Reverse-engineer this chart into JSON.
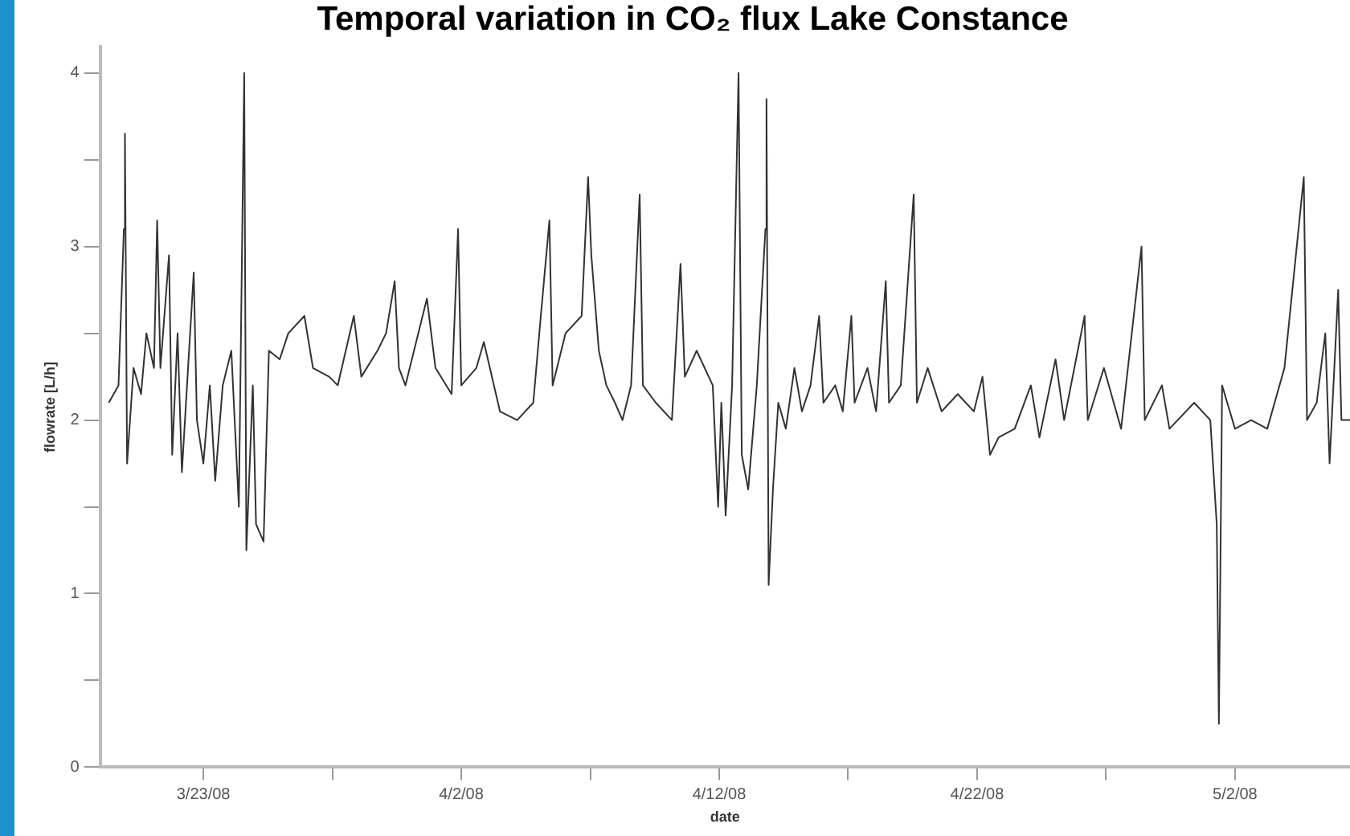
{
  "chart_data": {
    "type": "line",
    "title": "Temporal variation in CO₂ flux Lake Constance",
    "xlabel": "date",
    "ylabel": "flowrate [L/h]",
    "x": [
      "--03-19T08:00",
      "--03-19T17:00",
      "--03-19T22:00",
      "--03-19T23:00",
      "--03-20T01:00",
      "--03-20T07:00",
      "--03-20T14:00",
      "--03-20T19:00",
      "--03-21T02:00",
      "--03-21T05:00",
      "--03-21T08:00",
      "--03-21T16:00",
      "--03-21T19:00",
      "--03-22T00:00",
      "--03-22T04:00",
      "--03-22T15:00",
      "--03-22T18:00",
      "--03-23T00:00",
      "--03-23T06:00",
      "--03-23T11:00",
      "--03-23T18:00",
      "--03-24T02:00",
      "--03-24T09:00",
      "--03-24T14:00",
      "--03-24T16:00",
      "--03-24T22:00",
      "--03-25T01:00",
      "--03-25T08:00",
      "--03-25T13:00",
      "--03-25T23:00",
      "--03-26T07:00",
      "--03-26T22:00",
      "--03-27T06:00",
      "--03-27T21:00",
      "--03-28T05:00",
      "--03-28T20:00",
      "--03-29T03:00",
      "--03-29T18:00",
      "--03-30T02:00",
      "--03-30T10:00",
      "--03-30T14:00",
      "--03-30T20:00",
      "--03-31T16:00",
      "--04-01T00:00",
      "--04-01T15:00",
      "--04-01T21:00",
      "--04-02T00:00",
      "--04-02T14:00",
      "--04-02T21:00",
      "--04-03T12:00",
      "--04-04T04:00",
      "--04-04T19:00",
      "--04-05T02:00",
      "--04-05T10:00",
      "--04-05T13:00",
      "--04-06T01:00",
      "--04-06T16:00",
      "--04-06T22:00",
      "--04-07T01:00",
      "--04-07T08:00",
      "--04-07T15:00",
      "--04-07T23:00",
      "--04-08T06:00",
      "--04-08T14:00",
      "--04-08T22:00",
      "--04-09T01:00",
      "--04-09T13:00",
      "--04-10T04:00",
      "--04-10T12:00",
      "--04-10T16:00",
      "--04-11T03:00",
      "--04-11T18:00",
      "--04-11T23:00",
      "--04-12T02:00",
      "--04-12T06:00",
      "--04-12T12:00",
      "--04-12T18:00",
      "--04-12T21:00",
      "--04-13T03:00",
      "--04-13T11:00",
      "--04-13T19:00",
      "--04-13T20:00",
      "--04-13T22:00",
      "--04-14T02:00",
      "--04-14T07:00",
      "--04-14T14:00",
      "--04-14T22:00",
      "--04-15T05:00",
      "--04-15T13:00",
      "--04-15T21:00",
      "--04-16T01:00",
      "--04-16T12:00",
      "--04-16T19:00",
      "--04-17T03:00",
      "--04-17T06:00",
      "--04-17T18:00",
      "--04-18T02:00",
      "--04-18T11:00",
      "--04-18T14:00",
      "--04-19T01:00",
      "--04-19T13:00",
      "--04-19T16:00",
      "--04-20T02:00",
      "--04-20T15:00",
      "--04-21T06:00",
      "--04-21T21:00",
      "--04-22T05:00",
      "--04-22T12:00",
      "--04-22T20:00",
      "--04-23T11:00",
      "--04-24T02:00",
      "--04-24T10:00",
      "--04-25T01:00",
      "--04-25T09:00",
      "--04-26T04:00",
      "--04-26T07:00",
      "--04-26T22:00",
      "--04-27T14:00",
      "--04-28T09:00",
      "--04-28T12:00",
      "--04-29T04:00",
      "--04-29T11:00",
      "--04-30T10:00",
      "--05-01T01:00",
      "--05-01T07:00",
      "--05-01T09:00",
      "--05-01T12:00",
      "--05-02T00:00",
      "--05-02T15:00",
      "--05-03T06:00",
      "--05-03T22:00",
      "--05-04T16:00",
      "--05-04T19:00",
      "--05-05T04:00",
      "--05-05T12:00",
      "--05-05T16:00",
      "--05-06T00:00",
      "--05-06T03:00",
      "--05-06T11:00"
    ],
    "values": [
      2.1,
      2.2,
      3.1,
      3.65,
      1.75,
      2.3,
      2.15,
      2.5,
      2.3,
      3.15,
      2.3,
      2.95,
      1.8,
      2.5,
      1.7,
      2.85,
      2.0,
      1.75,
      2.2,
      1.65,
      2.2,
      2.4,
      1.5,
      4.0,
      1.25,
      2.2,
      1.4,
      1.3,
      2.4,
      2.35,
      2.5,
      2.6,
      2.3,
      2.25,
      2.2,
      2.6,
      2.25,
      2.4,
      2.5,
      2.8,
      2.3,
      2.2,
      2.7,
      2.3,
      2.15,
      3.1,
      2.2,
      2.3,
      2.45,
      2.05,
      2.0,
      2.1,
      2.6,
      3.15,
      2.2,
      2.5,
      2.6,
      3.4,
      2.95,
      2.4,
      2.2,
      2.1,
      2.0,
      2.2,
      3.3,
      2.2,
      2.1,
      2.0,
      2.9,
      2.25,
      2.4,
      2.2,
      1.5,
      2.1,
      1.45,
      2.2,
      4.0,
      1.8,
      1.6,
      2.2,
      3.1,
      3.85,
      1.05,
      1.6,
      2.1,
      1.95,
      2.3,
      2.05,
      2.2,
      2.6,
      2.1,
      2.2,
      2.05,
      2.6,
      2.1,
      2.3,
      2.05,
      2.8,
      2.1,
      2.2,
      3.3,
      2.1,
      2.3,
      2.05,
      2.15,
      2.05,
      2.25,
      1.8,
      1.9,
      1.95,
      2.2,
      1.9,
      2.35,
      2.0,
      2.6,
      2.0,
      2.3,
      1.95,
      3.0,
      2.0,
      2.2,
      1.95,
      2.1,
      2.0,
      1.4,
      0.25,
      2.2,
      1.95,
      2.0,
      1.95,
      2.3,
      3.4,
      2.0,
      2.1,
      2.5,
      1.75,
      2.75,
      2.0,
      2.0
    ],
    "color": "#333333",
    "xlim": [
      "--03-19",
      "--05-06T11:00"
    ],
    "xticks": [
      {
        "value": "--03-23",
        "label": "3/23/08"
      },
      {
        "value": "--03-28",
        "label": null
      },
      {
        "value": "--04-02",
        "label": "4/2/08"
      },
      {
        "value": "--04-07",
        "label": null
      },
      {
        "value": "--04-12",
        "label": "4/12/08"
      },
      {
        "value": "--04-17",
        "label": null
      },
      {
        "value": "--04-22",
        "label": "4/22/08"
      },
      {
        "value": "--04-27",
        "label": null
      },
      {
        "value": "--05-02",
        "label": "5/2/08"
      }
    ],
    "ylim": [
      0,
      4.15
    ],
    "yticks": [
      0,
      {
        "value": 0.5,
        "label": null
      },
      1,
      {
        "value": 1.5,
        "label": null
      },
      2,
      {
        "value": 2.5,
        "label": null
      },
      3,
      {
        "value": 3.5,
        "label": null
      },
      4
    ],
    "grid": false,
    "legend": false,
    "marker": "none",
    "line_style": "solid"
  }
}
